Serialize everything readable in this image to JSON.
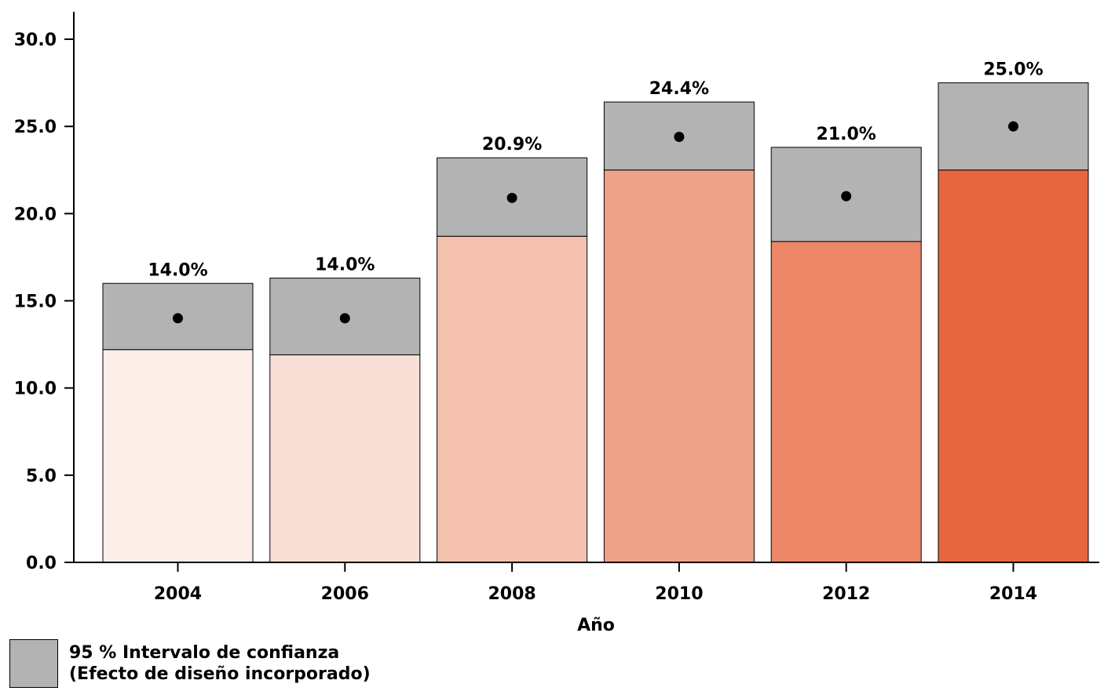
{
  "chart_data": {
    "type": "bar",
    "xlabel": "Año",
    "ylabel": "",
    "ylim": [
      0,
      30
    ],
    "yticks": [
      "0.0",
      "5.0",
      "10.0",
      "15.0",
      "20.0",
      "25.0",
      "30.0"
    ],
    "categories": [
      "2004",
      "2006",
      "2008",
      "2010",
      "2012",
      "2014"
    ],
    "values": [
      14.0,
      14.0,
      20.9,
      24.4,
      21.0,
      25.0
    ],
    "value_labels": [
      "14.0%",
      "14.0%",
      "20.9%",
      "24.4%",
      "21.0%",
      "25.0%"
    ],
    "ci_lower": [
      12.2,
      11.9,
      18.7,
      22.5,
      18.4,
      22.5
    ],
    "ci_upper": [
      16.0,
      16.3,
      23.2,
      26.4,
      23.8,
      27.5
    ],
    "bar_colors": [
      "#fcefea",
      "#f9dfd5",
      "#f4c1ae",
      "#f0a38b",
      "#ec8768",
      "#e6663f"
    ],
    "ci_color": "#b3b3b3",
    "legend": {
      "line1": "95 % Intervalo de confianza",
      "line2": "(Efecto de diseño incorporado)"
    }
  }
}
